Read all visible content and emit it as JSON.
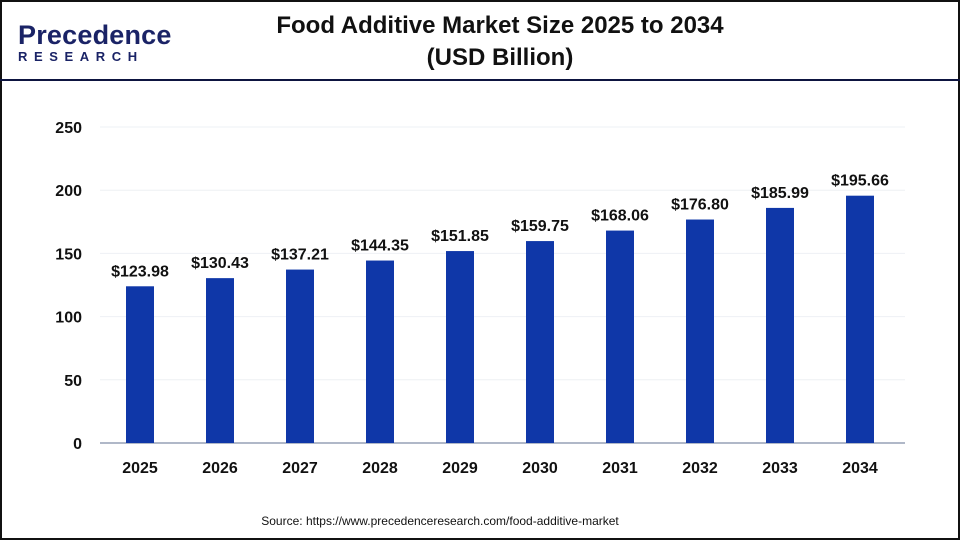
{
  "logo": {
    "line1": "Precedence",
    "line2": "RESEARCH"
  },
  "title_line1": "Food Additive Market Size 2025 to 2034",
  "title_line2": "(USD Billion)",
  "source": "Source: https://www.precedenceresearch.com/food-additive-market",
  "colors": {
    "bar": "#0f37a8",
    "axis": "#b0b8c8",
    "header_line": "#0d1440"
  },
  "chart_data": {
    "type": "bar",
    "title": "Food Additive Market Size 2025 to 2034 (USD Billion)",
    "categories": [
      "2025",
      "2026",
      "2027",
      "2028",
      "2029",
      "2030",
      "2031",
      "2032",
      "2033",
      "2034"
    ],
    "values": [
      123.98,
      130.43,
      137.21,
      144.35,
      151.85,
      159.75,
      168.06,
      176.8,
      185.99,
      195.66
    ],
    "data_labels": [
      "$123.98",
      "$130.43",
      "$137.21",
      "$144.35",
      "$151.85",
      "$159.75",
      "$168.06",
      "$176.80",
      "$185.99",
      "$195.66"
    ],
    "yticks": [
      0,
      50,
      100,
      150,
      200,
      250
    ],
    "ylim": [
      0,
      250
    ],
    "grid": true,
    "xlabel": "",
    "ylabel": ""
  }
}
